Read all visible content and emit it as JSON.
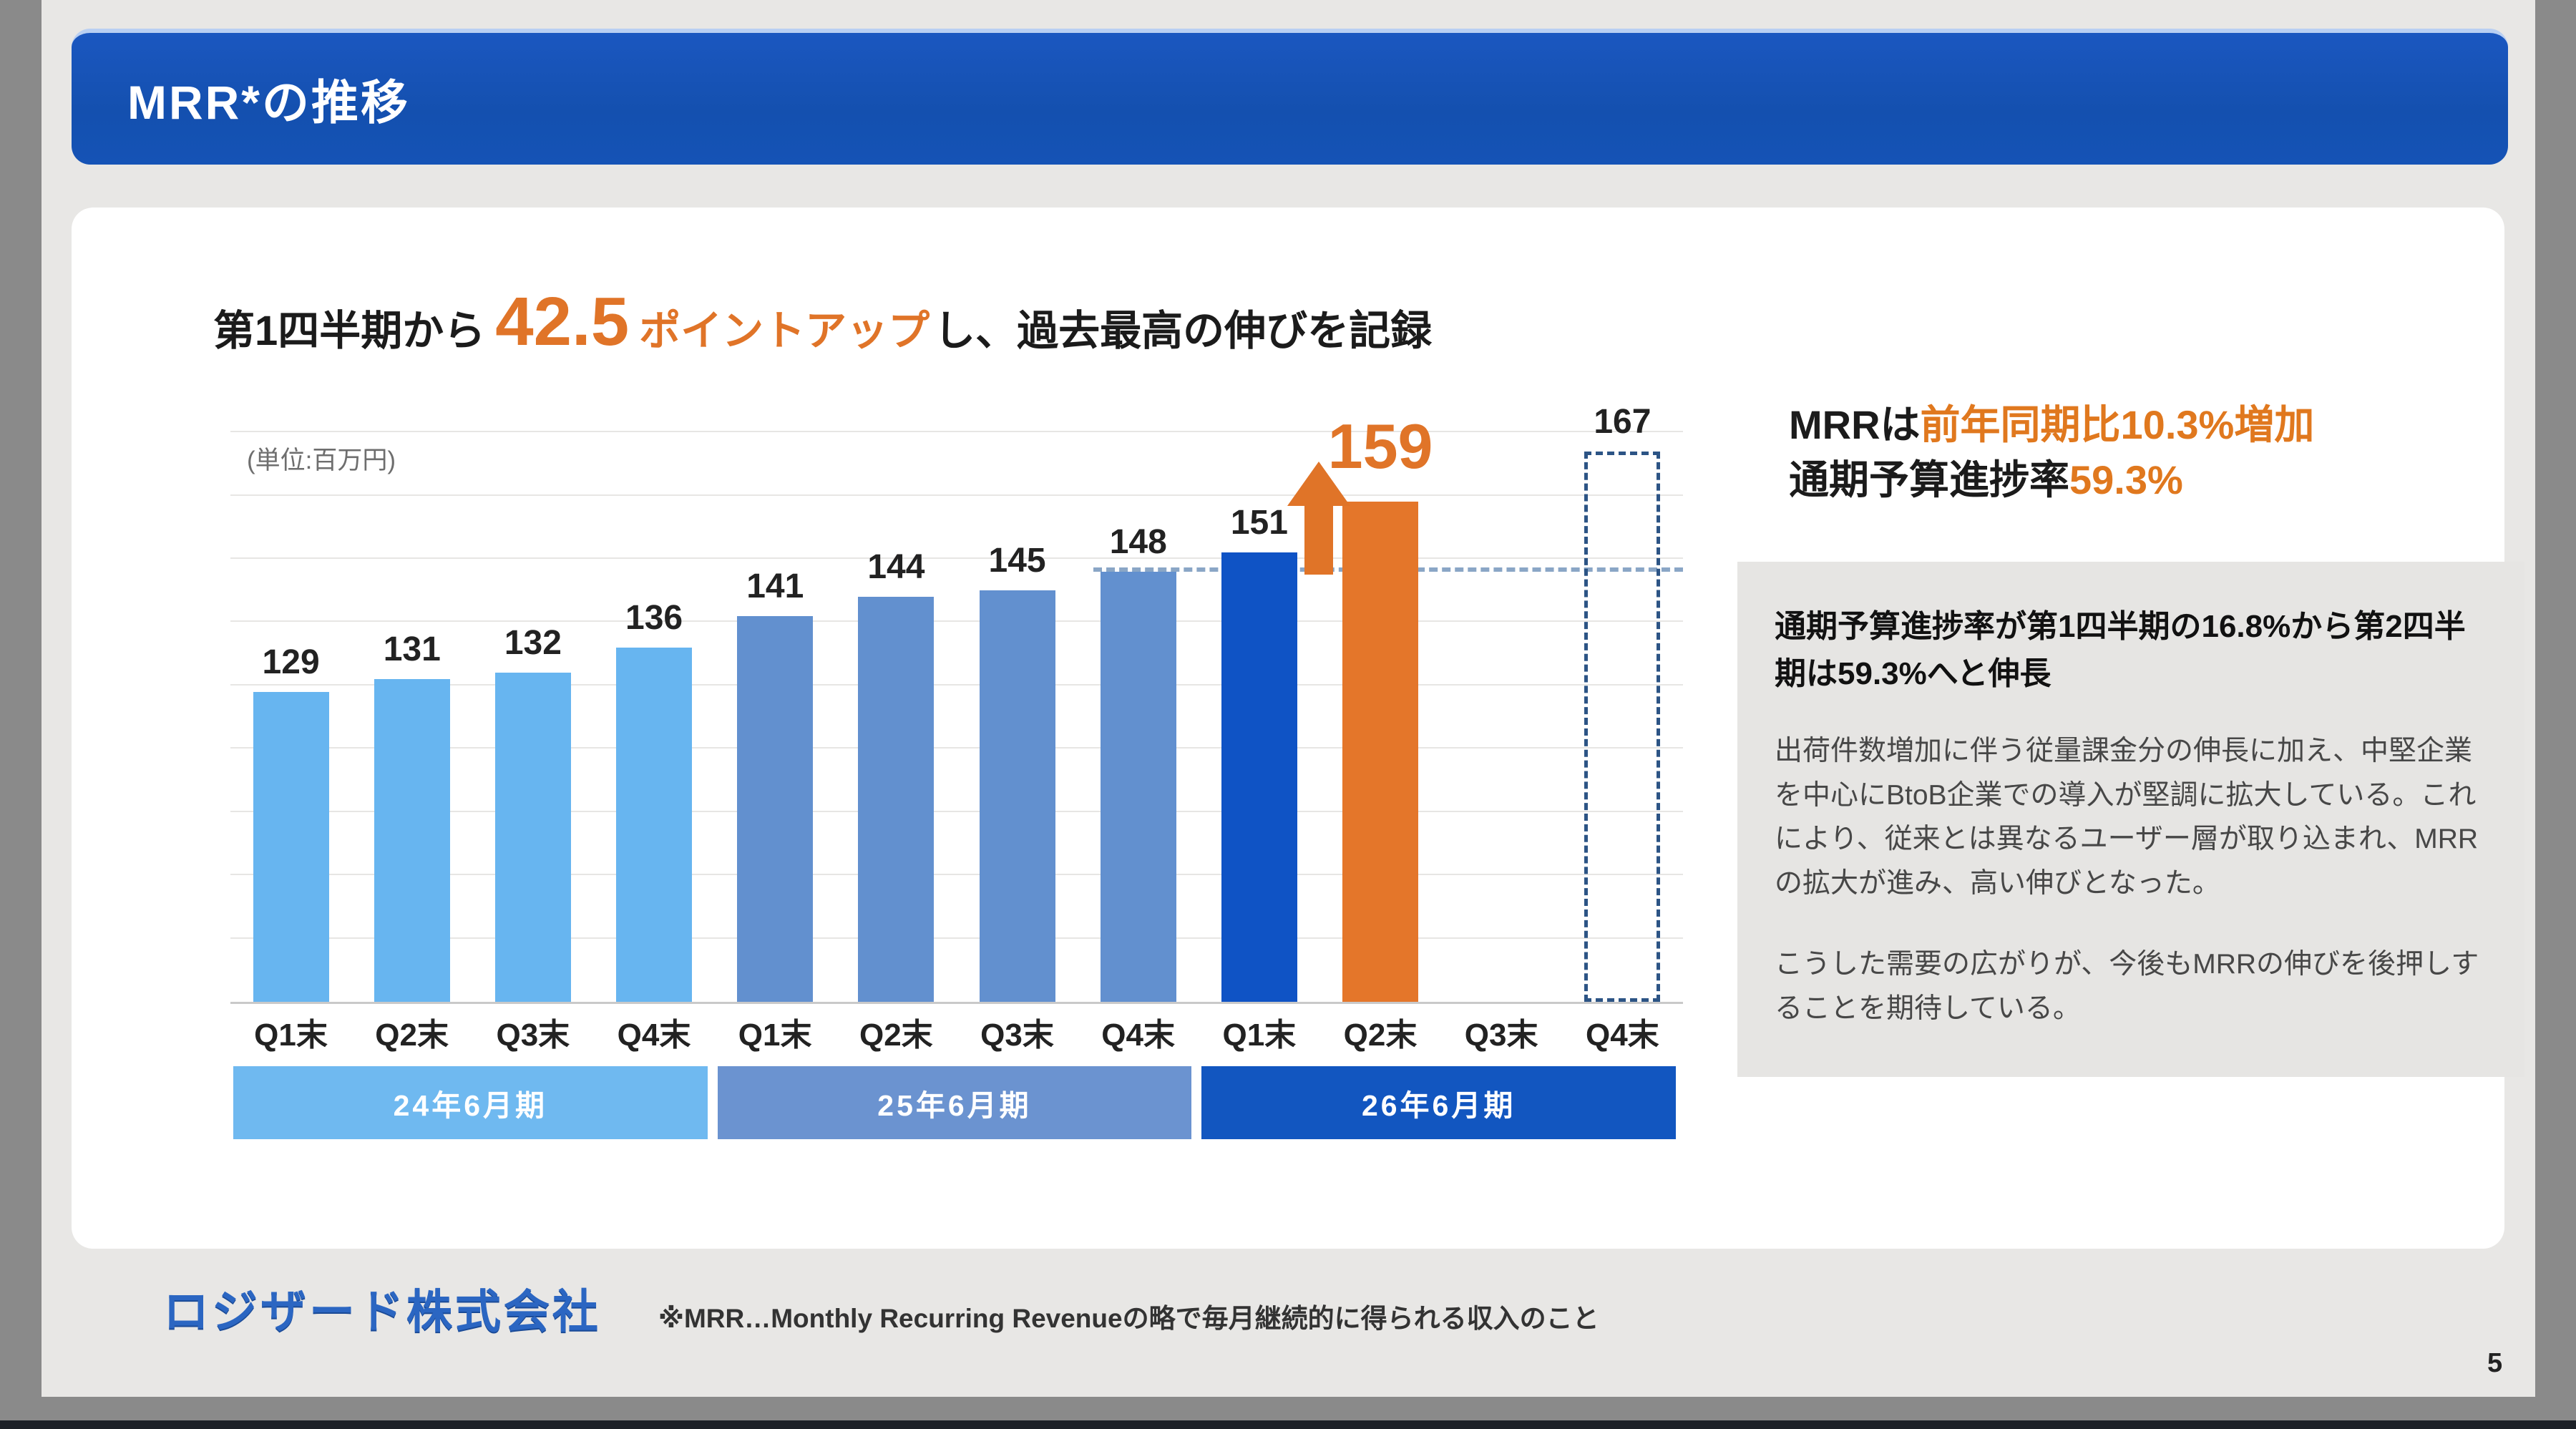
{
  "title_bar": {
    "title": "MRR*の推移"
  },
  "headline": {
    "prefix": "第1四半期から",
    "big_number": "42.5",
    "orange_text": "ポイントアップ",
    "suffix": "し、過去最高の伸びを記録"
  },
  "chart": {
    "unit_label": "(単位:百万円)"
  },
  "chart_data": {
    "type": "bar",
    "title": "MRRの推移",
    "unit": "百万円",
    "ylim": [
      80,
      175
    ],
    "grid_step": 10,
    "grid": true,
    "reference_line": 148,
    "categories": [
      "Q1末",
      "Q2末",
      "Q3末",
      "Q4末",
      "Q1末",
      "Q2末",
      "Q3末",
      "Q4末",
      "Q1末",
      "Q2末",
      "Q3末",
      "Q4末"
    ],
    "bars": [
      {
        "category": "Q1末",
        "value": 129,
        "fill": "#67b5f0",
        "group": "24年6月期"
      },
      {
        "category": "Q2末",
        "value": 131,
        "fill": "#67b5f0",
        "group": "24年6月期"
      },
      {
        "category": "Q3末",
        "value": 132,
        "fill": "#67b5f0",
        "group": "24年6月期"
      },
      {
        "category": "Q4末",
        "value": 136,
        "fill": "#67b5f0",
        "group": "24年6月期"
      },
      {
        "category": "Q1末",
        "value": 141,
        "fill": "#6290cf",
        "group": "25年6月期"
      },
      {
        "category": "Q2末",
        "value": 144,
        "fill": "#6290cf",
        "group": "25年6月期"
      },
      {
        "category": "Q3末",
        "value": 145,
        "fill": "#6290cf",
        "group": "25年6月期"
      },
      {
        "category": "Q4末",
        "value": 148,
        "fill": "#6290cf",
        "group": "25年6月期"
      },
      {
        "category": "Q1末",
        "value": 151,
        "fill": "#0f53c5",
        "group": "26年6月期"
      },
      {
        "category": "Q2末",
        "value": 159,
        "fill": "#e4762a",
        "group": "26年6月期",
        "highlight": true
      },
      {
        "category": "Q3末",
        "value": null,
        "group": "26年6月期"
      },
      {
        "category": "Q4末",
        "value": 167,
        "fill": "none",
        "dashed": true,
        "forecast": true,
        "group": "26年6月期"
      }
    ],
    "period_groups": [
      {
        "label": "24年6月期",
        "color": "#6fb9f0",
        "values": [
          129,
          131,
          132,
          136
        ]
      },
      {
        "label": "25年6月期",
        "color": "#6b93d0",
        "values": [
          141,
          144,
          145,
          148
        ]
      },
      {
        "label": "26年6月期",
        "color": "#1256c0",
        "values": [
          151,
          159,
          null,
          167
        ]
      }
    ],
    "annotations": {
      "highlight_label": "159",
      "forecast_label": "167",
      "arrow": "up-arrow-between-151-and-159"
    }
  },
  "right_panel": {
    "headline_line1_black": "MRRは",
    "headline_line1_orange": "前年同期比10.3%増加",
    "headline_line2_black": "通期予算進捗率",
    "headline_line2_orange": "59.3%",
    "box_heading": "通期予算進捗率が第1四半期の16.8%から第2四半期は59.3%へと伸長",
    "box_para1": "出荷件数増加に伴う従量課金分の伸長に加え、中堅企業を中心にBtoB企業での導入が堅調に拡大している。これにより、従来とは異なるユーザー層が取り込まれ、MRRの拡大が進み、高い伸びとなった。",
    "box_para2": "こうした需要の広がりが、今後もMRRの伸びを後押しすることを期待している。"
  },
  "footer": {
    "logo": "ロジザード株式会社",
    "note": "※MRR…Monthly Recurring Revenueの略で毎月継続的に得られる収入のこと",
    "page_number": "5"
  },
  "colors": {
    "title_bar_blue": "#1553b6",
    "accent_orange": "#e07428",
    "bar_light_blue": "#67b5f0",
    "bar_steel_blue": "#6290cf",
    "bar_dark_blue": "#0f53c5",
    "bar_orange": "#e4762a",
    "reference_dash": "#8aa6c6",
    "forecast_outline": "#2c5485"
  }
}
